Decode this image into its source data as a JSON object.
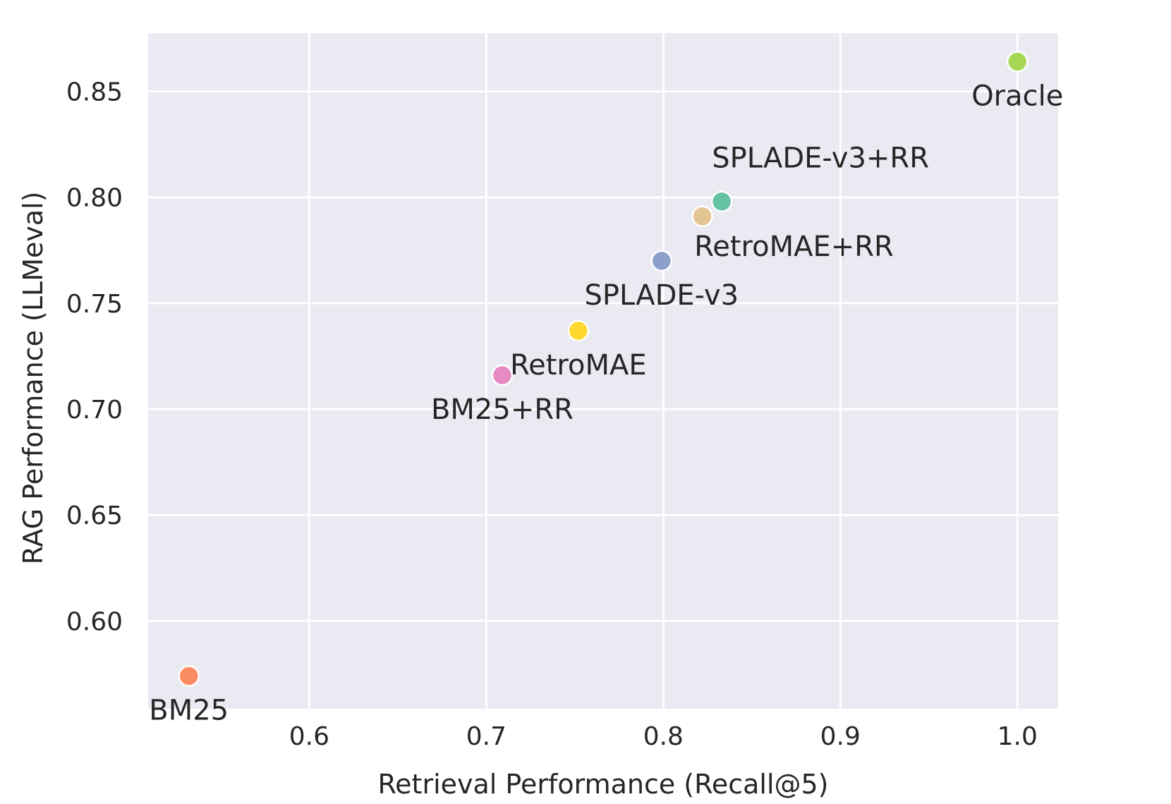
{
  "chart_data": {
    "type": "scatter",
    "title": "",
    "xlabel": "Retrieval Performance (Recall@5)",
    "ylabel": "RAG Performance (LLMeval)",
    "xlim": [
      0.509,
      1.023
    ],
    "ylim": [
      0.5585,
      0.8775
    ],
    "xticks": [
      0.6,
      0.7,
      0.8,
      0.9,
      1.0
    ],
    "xtick_labels": [
      "0.6",
      "0.7",
      "0.8",
      "0.9",
      "1.0"
    ],
    "yticks": [
      0.6,
      0.65,
      0.7,
      0.75,
      0.8,
      0.85
    ],
    "ytick_labels": [
      "0.60",
      "0.65",
      "0.70",
      "0.75",
      "0.80",
      "0.85"
    ],
    "grid": true,
    "legend": "none",
    "background_color": "#eaeaf2",
    "points": [
      {
        "label": "BM25",
        "x": 0.532,
        "y": 0.574,
        "color": "#fc8d62",
        "label_anchor": "below"
      },
      {
        "label": "BM25+RR",
        "x": 0.709,
        "y": 0.716,
        "color": "#e78ac3",
        "label_anchor": "below"
      },
      {
        "label": "RetroMAE",
        "x": 0.752,
        "y": 0.737,
        "color": "#ffd92f",
        "label_anchor": "below"
      },
      {
        "label": "SPLADE-v3",
        "x": 0.799,
        "y": 0.77,
        "color": "#8da0cb",
        "label_anchor": "below"
      },
      {
        "label": "RetroMAE+RR",
        "x": 0.822,
        "y": 0.791,
        "color": "#e5c494",
        "label_anchor": "below-right"
      },
      {
        "label": "SPLADE-v3+RR",
        "x": 0.833,
        "y": 0.798,
        "color": "#66c2a5",
        "label_anchor": "above"
      },
      {
        "label": "Oracle",
        "x": 1.0,
        "y": 0.864,
        "color": "#a6d854",
        "label_anchor": "below"
      }
    ]
  }
}
